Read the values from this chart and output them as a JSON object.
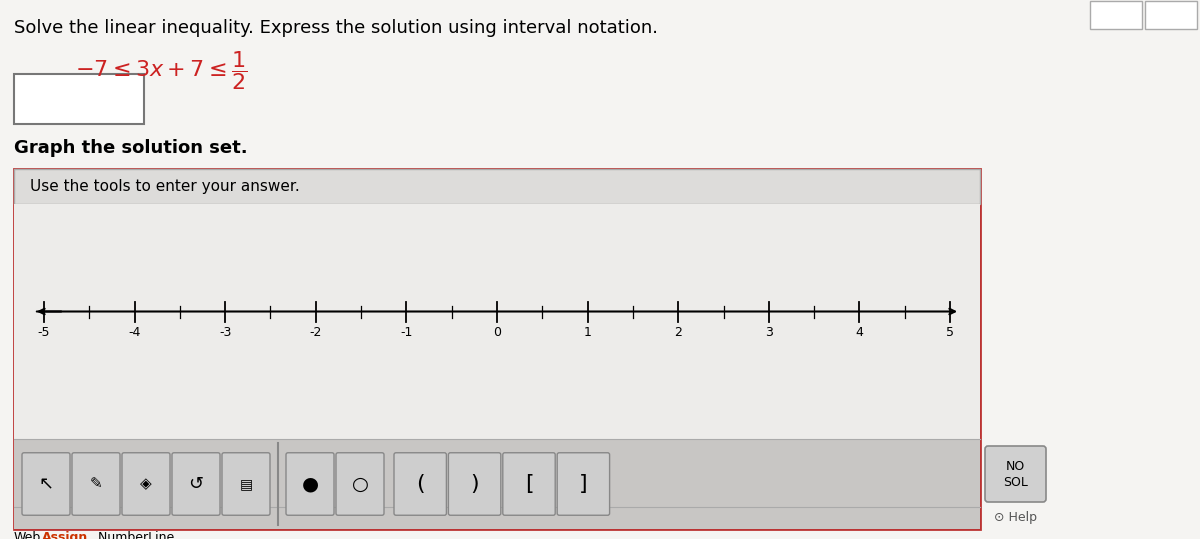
{
  "title_text": "Solve the linear inequality. Express the solution using interval notation.",
  "graph_label": "Graph the solution set.",
  "tools_label": "Use the tools to enter your answer.",
  "tick_labels": [
    -5,
    -4,
    -3,
    -2,
    -1,
    0,
    1,
    2,
    3,
    4,
    5
  ],
  "bg_color": "#e8e6e3",
  "white": "#f5f4f2",
  "inner_bg": "#e0dedd",
  "numberline_bg": "#edecea",
  "header_bg": "#d8d6d4",
  "border_color_outer": "#c0c0c0",
  "border_color_red": "#bb3333",
  "toolbar_bg": "#c8c6c4",
  "button_bg": "#d0cece",
  "button_border": "#999999",
  "nosol_bg": "#cccccc",
  "webassign_color": "#cc3300",
  "title_fontsize": 13,
  "label_fontsize": 12,
  "tick_fontsize": 9,
  "ineq_fontsize": 14
}
